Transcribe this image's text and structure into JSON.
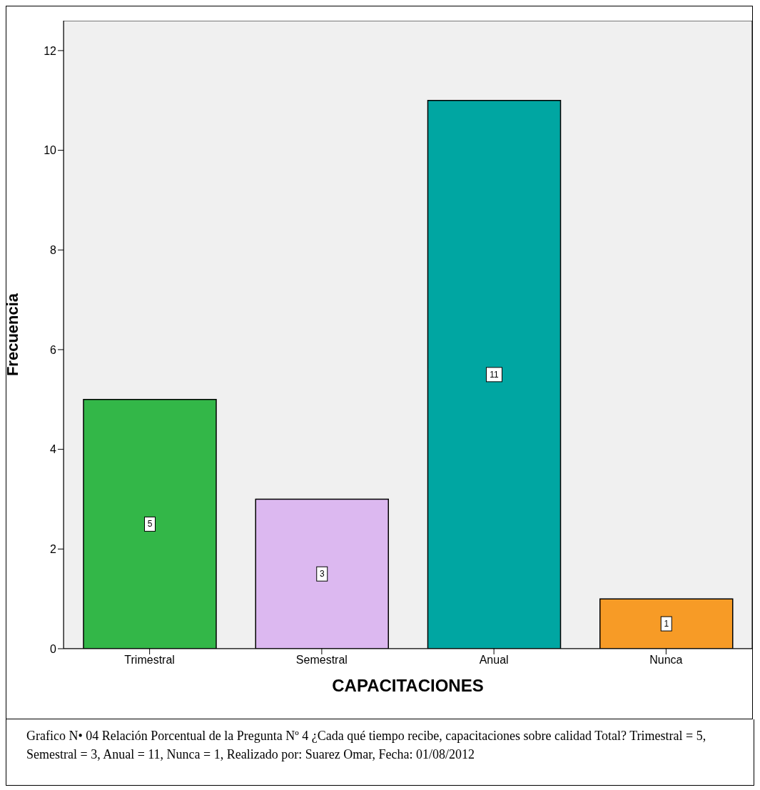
{
  "chart_data": {
    "type": "bar",
    "xlabel": "CAPACITACIONES",
    "ylabel": "Frecuencia",
    "categories": [
      "Trimestral",
      "Semestral",
      "Anual",
      "Nunca"
    ],
    "values": [
      5,
      3,
      11,
      1
    ],
    "colors": [
      "#33b748",
      "#dcb8f0",
      "#00a6a2",
      "#f79b26"
    ],
    "ylim": [
      0,
      12.6
    ],
    "yticks": [
      0,
      2,
      4,
      6,
      8,
      10,
      12
    ],
    "grid": false,
    "data_labels": true,
    "annotations": [
      "Grafico N• 04 Relación Porcentual de la  Pregunta Nº 4 ¿Cada qué tiempo recibe, capacitaciones  sobre  calidad Total? Trimestral = 5, Semestral = 3, Anual = 11, Nunca = 1, Realizado por: Suarez Omar, Fecha: 01/08/2012"
    ]
  }
}
